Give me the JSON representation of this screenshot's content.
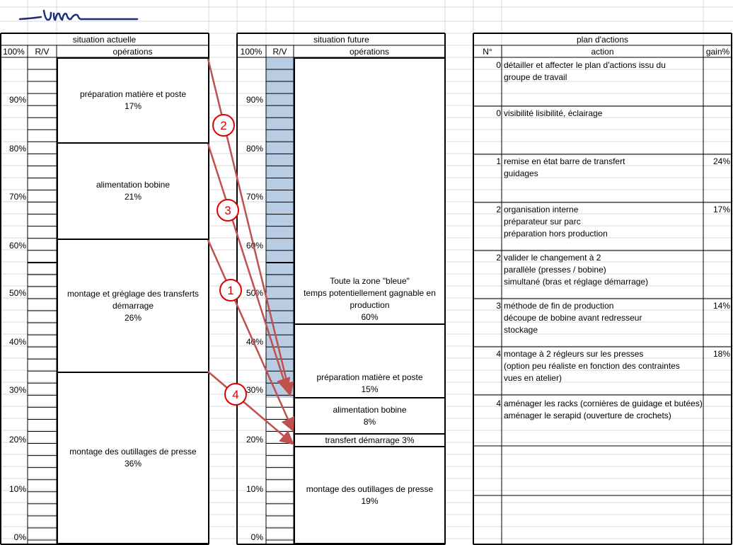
{
  "current": {
    "title": "situation actuelle",
    "col_pct": "100%",
    "col_rv": "R/V",
    "col_ops": "opérations",
    "blocks": [
      {
        "name": "préparation matière et poste",
        "value": "17%"
      },
      {
        "name": "alimentation bobine",
        "value": "21%"
      },
      {
        "name": "montage et gréglage des transferts démarrage",
        "value": "26%"
      },
      {
        "name": "montage des outillages de presse",
        "value": "36%"
      }
    ]
  },
  "future": {
    "title": "situation future",
    "col_pct": "100%",
    "col_rv": "R/V",
    "col_ops": "opérations",
    "blue_zone": {
      "line1": "Toute la zone \"bleue\"",
      "line2": "temps potentiellement gagnable en production",
      "value": "60%"
    },
    "blocks": [
      {
        "name": "préparation matière et poste",
        "value": "15%"
      },
      {
        "name": "alimentation bobine",
        "value": "8%"
      },
      {
        "name": "transfert démarrage 3%",
        "value": ""
      },
      {
        "name": "montage des outillages de presse",
        "value": "19%"
      }
    ]
  },
  "axis_labels": [
    "90%",
    "80%",
    "70%",
    "60%",
    "50%",
    "40%",
    "30%",
    "20%",
    "10%",
    "0%"
  ],
  "plan": {
    "title": "plan d'actions",
    "col_num": "N°",
    "col_action": "action",
    "col_gain": "gain%",
    "rows": [
      {
        "num": "0",
        "lines": [
          "détailler et affecter le plan d'actions issu du",
          "groupe de travail"
        ],
        "gain": ""
      },
      {
        "num": "0",
        "lines": [
          "visibilité lisibilité, éclairage"
        ],
        "gain": ""
      },
      {
        "num": "1",
        "lines": [
          "remise en état barre de transfert",
          "guidages"
        ],
        "gain": "24%"
      },
      {
        "num": "2",
        "lines": [
          "organisation interne",
          "préparateur sur parc",
          "préparation hors production"
        ],
        "gain": "17%"
      },
      {
        "num": "2",
        "lines": [
          "valider le changement à 2",
          "parallèle (presses / bobine)",
          "simultané (bras et réglage démarrage)"
        ],
        "gain": ""
      },
      {
        "num": "3",
        "lines": [
          "méthode de fin de production",
          "découpe de bobine avant redresseur",
          "stockage"
        ],
        "gain": "14%"
      },
      {
        "num": "4",
        "lines": [
          "montage à 2 régleurs sur les presses",
          "(option peu réaliste en fonction des contraintes",
          "vues en atelier)"
        ],
        "gain": "18%"
      },
      {
        "num": "4",
        "lines": [
          "aménager les racks (cornières de guidage et butées)",
          "aménager le serapid (ouverture de crochets)"
        ],
        "gain": ""
      }
    ]
  },
  "arrow_labels": [
    "2",
    "3",
    "1",
    "4"
  ],
  "colors": {
    "blue_zone": "#b8cce4",
    "arrow": "#c0504d",
    "grid": "#d9d9d9",
    "logo": "#1f2d7a"
  }
}
